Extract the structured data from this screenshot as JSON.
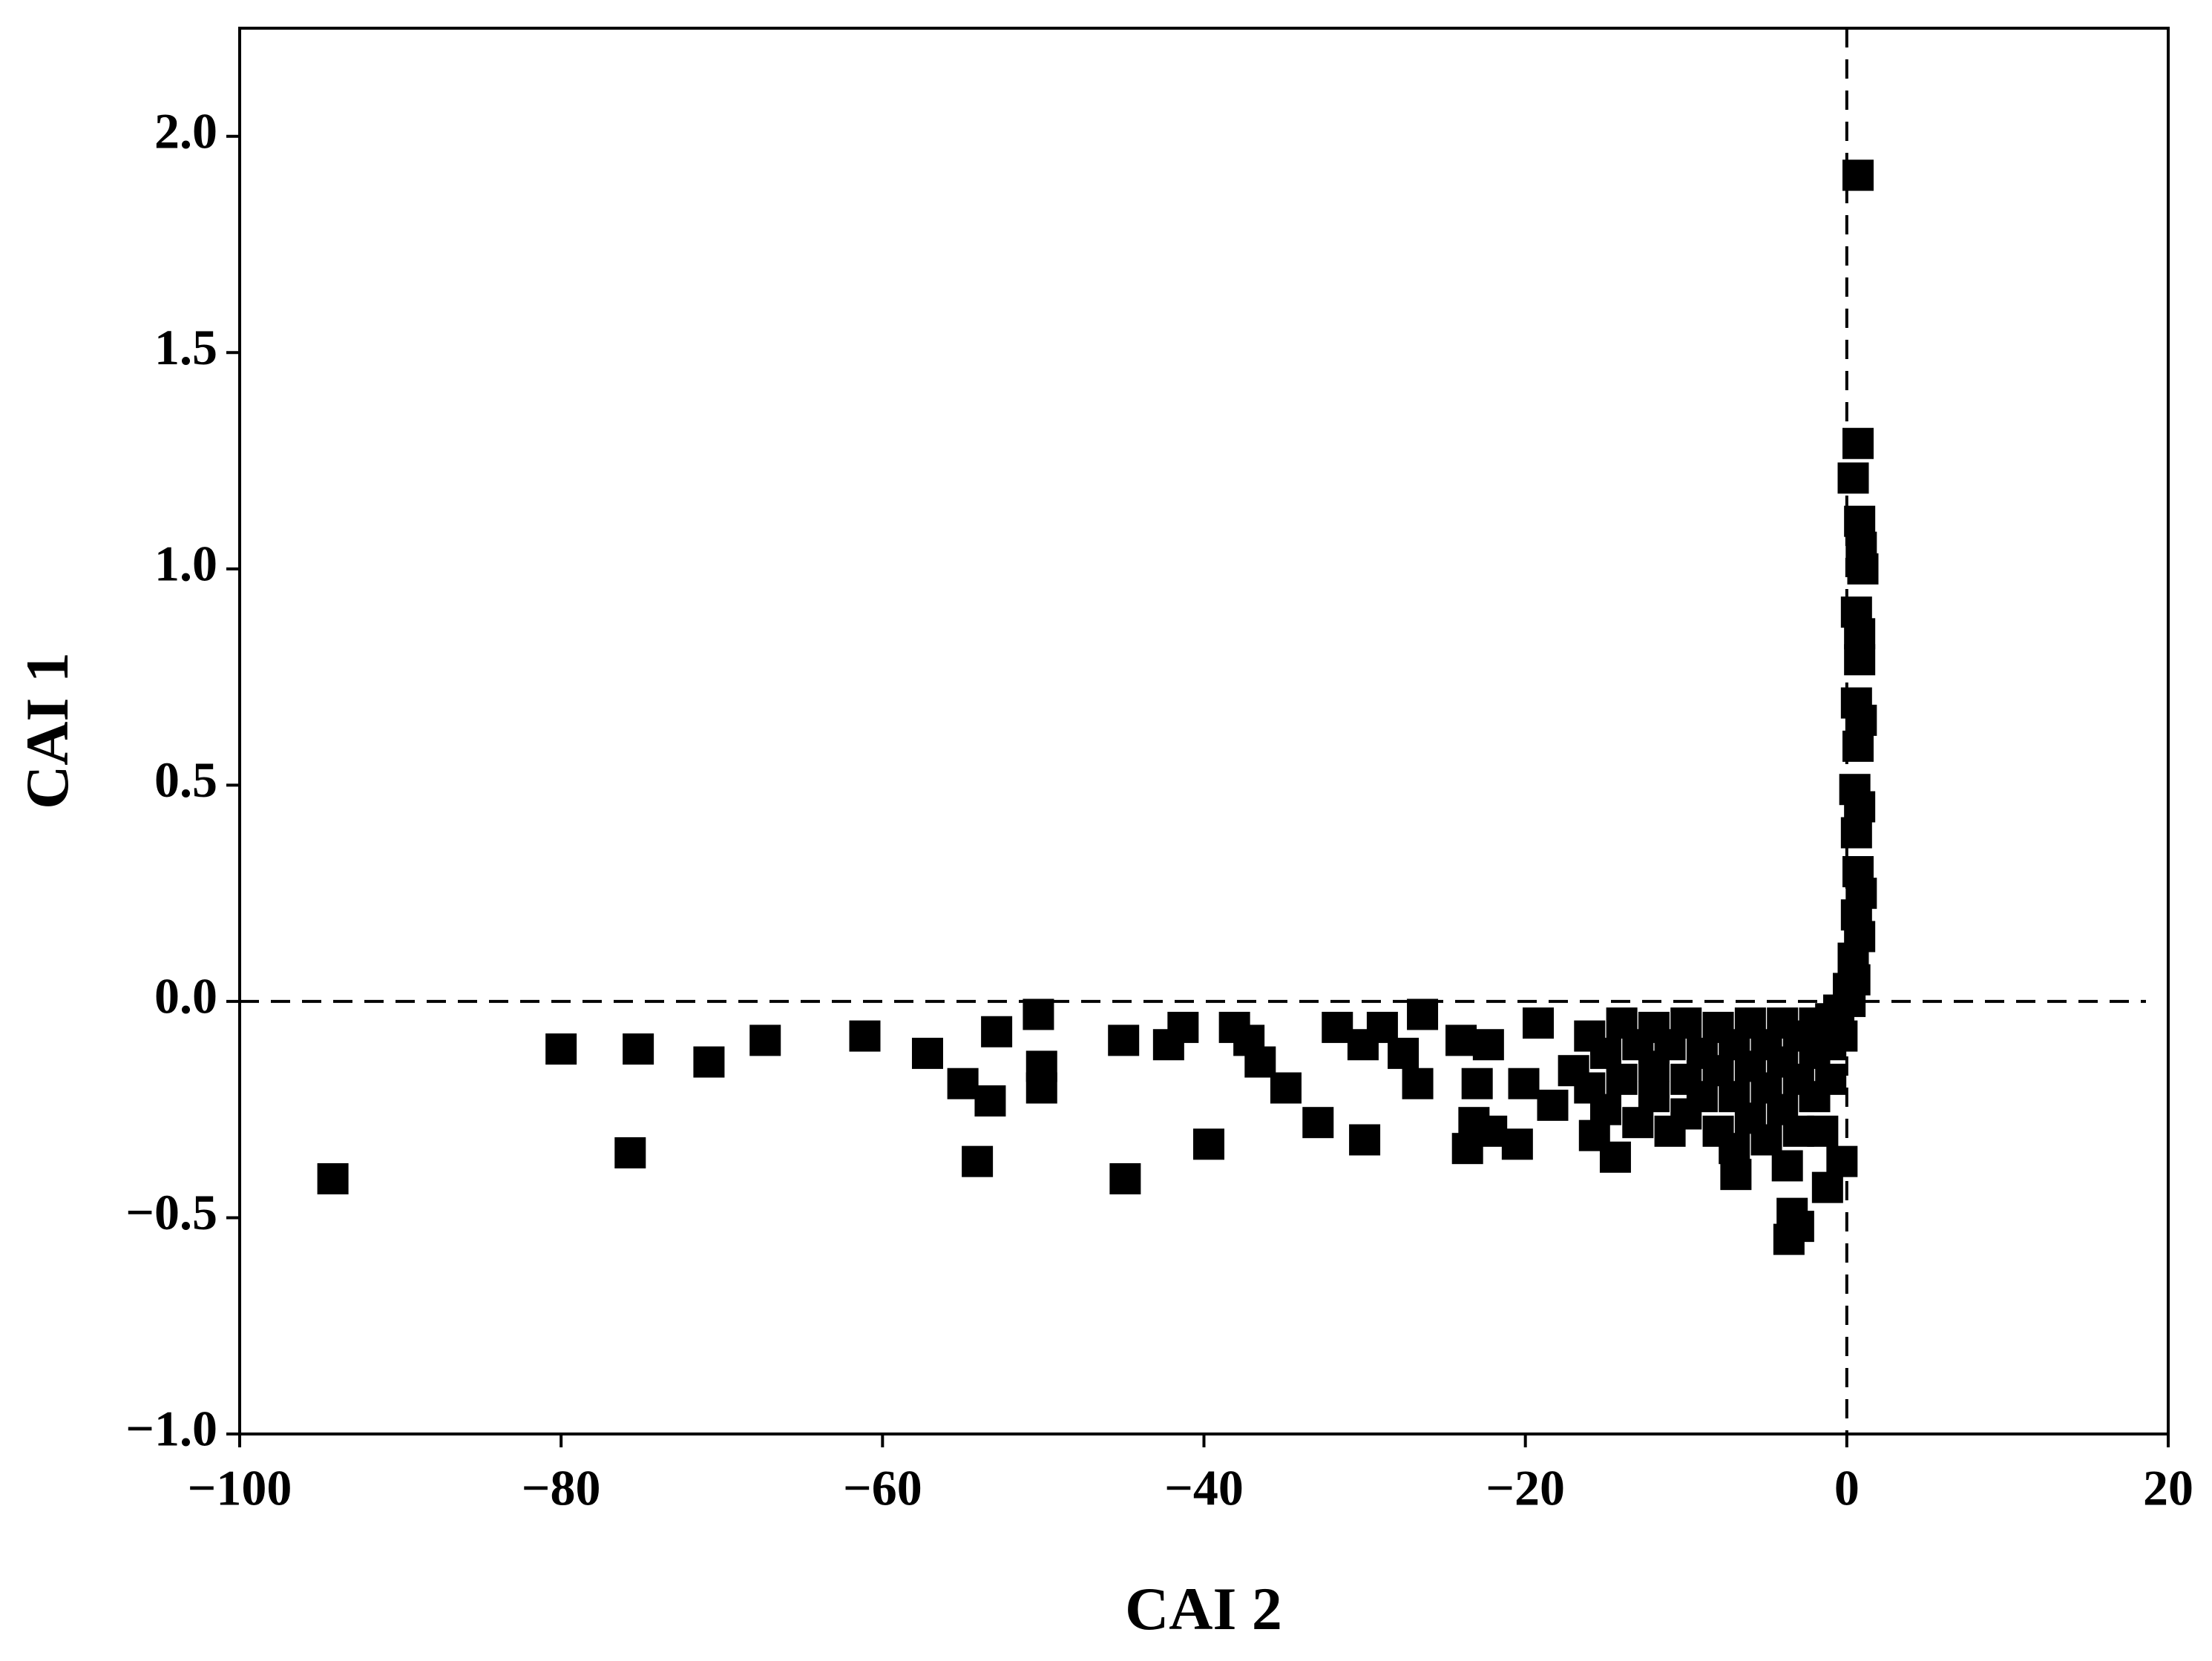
{
  "chart_data": {
    "type": "scatter",
    "x_label": "CAI 2",
    "y_label": "CAI 1",
    "xlim": [
      -100,
      20
    ],
    "ylim": [
      -1,
      2.25
    ],
    "xticks": [
      {
        "value": -100,
        "label": "−100"
      },
      {
        "value": -80,
        "label": "−80"
      },
      {
        "value": -60,
        "label": "−60"
      },
      {
        "value": -40,
        "label": "−40"
      },
      {
        "value": -20,
        "label": "−20"
      },
      0,
      20
    ],
    "yticks": [
      {
        "value": -1,
        "label": "−1.0"
      },
      {
        "value": -0.5,
        "label": "−0.5"
      },
      {
        "value": 0,
        "label": "0.0"
      },
      0.5,
      {
        "value": 1,
        "label": "1.0"
      },
      1.5,
      {
        "value": 2,
        "label": "2.0"
      }
    ],
    "hlines": [
      0
    ],
    "vlines": [
      0
    ],
    "marker": "square",
    "series": [
      {
        "color": "#000000",
        "x": [
          0.7,
          0.7,
          0.4,
          0.8,
          1.0,
          0.6,
          0.8,
          0.6,
          0.7,
          0.5,
          0.6,
          0.7,
          0.6,
          0.4,
          0.1,
          0.9,
          0.8,
          0.9,
          0.8,
          0.9,
          0.8,
          -94.2,
          -80.0,
          -75.2,
          -75.7,
          -70.8,
          -67.3,
          -61.1,
          -57.2,
          -55.0,
          -54.1,
          -53.3,
          -52.9,
          -50.3,
          -50.1,
          -50.1,
          -45.0,
          -44.9,
          -42.2,
          -41.3,
          -39.7,
          -38.1,
          -37.2,
          -36.5,
          -34.9,
          -32.9,
          -31.7,
          -30.1,
          -30.0,
          -28.9,
          -27.6,
          -26.7,
          -26.4,
          -24.0,
          -23.6,
          -23.2,
          -23.0,
          -22.3,
          -22.1,
          -20.5,
          -20.1,
          -19.2,
          -18.3,
          -17.0,
          -15.7,
          -14.4,
          -6.9,
          -3.4,
          -3.6,
          -3.0,
          -1.2,
          -0.3,
          -3.7,
          -16,
          -16,
          -15,
          -15,
          -14,
          -14,
          -13,
          -13,
          -12,
          -12,
          -12,
          -11,
          -11,
          -10,
          -10,
          -10,
          -9,
          -9,
          -8,
          -8,
          -8,
          -7,
          -7,
          -7,
          -6,
          -6,
          -6,
          -5,
          -5,
          -5,
          -4,
          -4,
          -4,
          -3,
          -3,
          -3,
          -2,
          -2,
          -2,
          -1,
          -1,
          -1,
          -0.5,
          -0.3,
          0.2,
          0.5,
          -1.5
        ],
        "values": [
          1.91,
          1.29,
          1.21,
          1.11,
          1.0,
          0.9,
          0.79,
          0.69,
          0.59,
          0.49,
          0.39,
          0.3,
          0.2,
          0.1,
          0.03,
          1.05,
          0.85,
          0.65,
          0.45,
          0.25,
          0.15,
          -0.41,
          -0.11,
          -0.11,
          -0.35,
          -0.14,
          -0.09,
          -0.08,
          -0.12,
          -0.19,
          -0.37,
          -0.23,
          -0.07,
          -0.03,
          -0.15,
          -0.2,
          -0.09,
          -0.41,
          -0.1,
          -0.06,
          -0.33,
          -0.06,
          -0.09,
          -0.14,
          -0.2,
          -0.28,
          -0.06,
          -0.1,
          -0.32,
          -0.06,
          -0.12,
          -0.19,
          -0.03,
          -0.09,
          -0.34,
          -0.28,
          -0.19,
          -0.1,
          -0.3,
          -0.33,
          -0.19,
          -0.05,
          -0.24,
          -0.16,
          -0.31,
          -0.36,
          -0.4,
          -0.49,
          -0.55,
          -0.52,
          -0.43,
          -0.37,
          -0.38,
          -0.08,
          -0.2,
          -0.12,
          -0.25,
          -0.05,
          -0.18,
          -0.1,
          -0.28,
          -0.06,
          -0.15,
          -0.22,
          -0.1,
          -0.3,
          -0.05,
          -0.18,
          -0.26,
          -0.12,
          -0.22,
          -0.06,
          -0.16,
          -0.3,
          -0.1,
          -0.22,
          -0.34,
          -0.05,
          -0.15,
          -0.27,
          -0.1,
          -0.2,
          -0.32,
          -0.05,
          -0.14,
          -0.25,
          -0.08,
          -0.18,
          -0.3,
          -0.05,
          -0.12,
          -0.22,
          -0.04,
          -0.1,
          -0.18,
          -0.02,
          -0.08,
          0.0,
          0.05,
          -0.3
        ]
      }
    ]
  }
}
